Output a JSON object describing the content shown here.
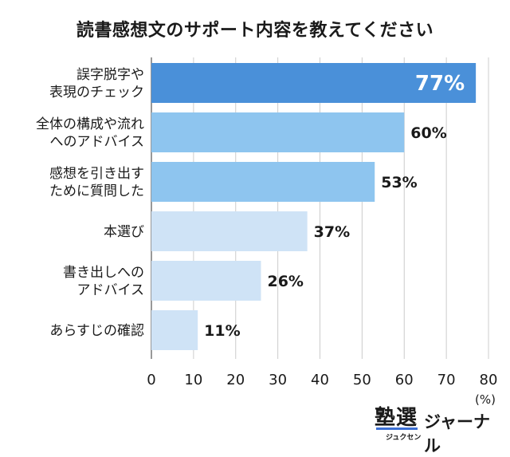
{
  "chart_data": {
    "type": "bar",
    "orientation": "horizontal",
    "title": "読書感想文のサポート内容を教えてください",
    "categories": [
      [
        "誤字脱字や",
        "表現のチェック"
      ],
      [
        "全体の構成や流れ",
        "へのアドバイス"
      ],
      [
        "感想を引き出す",
        "ために質問した"
      ],
      [
        "本選び"
      ],
      [
        "書き出しへの",
        "アドバイス"
      ],
      [
        "あらすじの確認"
      ]
    ],
    "values": [
      77,
      60,
      53,
      37,
      26,
      11
    ],
    "value_labels": [
      "77%",
      "60%",
      "53%",
      "37%",
      "26%",
      "11%"
    ],
    "xlim": [
      0,
      80
    ],
    "xticks": [
      0,
      10,
      20,
      30,
      40,
      50,
      60,
      70,
      80
    ],
    "unit": "(%)",
    "grid": true,
    "colors": [
      "#4a90d9",
      "#8ec5ef",
      "#8ec5ef",
      "#cfe3f6",
      "#cfe3f6",
      "#cfe3f6"
    ],
    "gridline_color": "#cccccc",
    "value_label_inside_color": "#ffffff"
  },
  "brand": {
    "kanji": "塾選",
    "kana": "ジュクセン",
    "name": "ジャーナル"
  }
}
